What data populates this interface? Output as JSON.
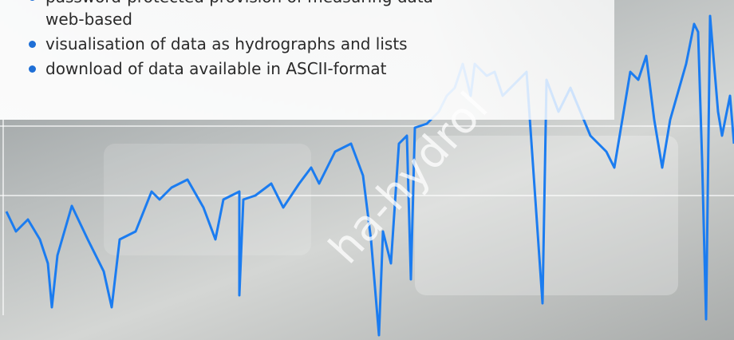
{
  "features": [
    [
      "password-protected provision of measuring data",
      "web-based"
    ],
    [
      "visualisation of data as hydrographs and lists"
    ],
    [
      "download of data available in ASCII-format"
    ]
  ],
  "key_label": "ha-hydrol"
}
